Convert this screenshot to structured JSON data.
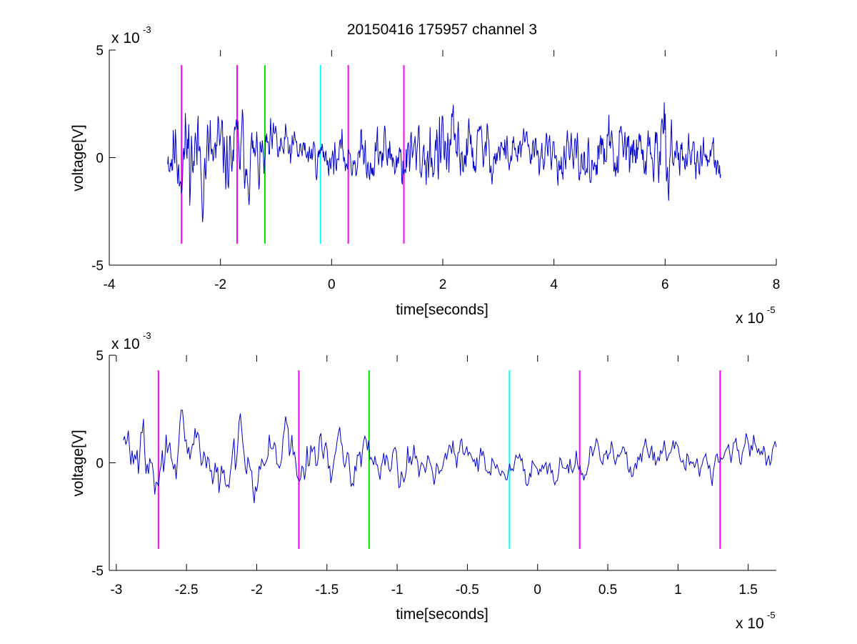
{
  "title": "20150416 175957 channel 3",
  "colors": {
    "signal": "#0000cc",
    "marker_magenta": "#ff00ff",
    "marker_green": "#00e000",
    "marker_cyan": "#00ffff",
    "axes": "#000000",
    "background": "#ffffff"
  },
  "chart_data": [
    {
      "type": "line",
      "id": "top",
      "xlabel": "time[seconds]",
      "ylabel": "voltage[V]",
      "x_multiplier_label": "x 10",
      "x_multiplier_exp": "-5",
      "y_multiplier_label": "x 10",
      "y_multiplier_exp": "-3",
      "xlim": [
        -4,
        8
      ],
      "ylim": [
        -5,
        5
      ],
      "xticks": [
        -4,
        -2,
        0,
        2,
        4,
        6,
        8
      ],
      "xtick_labels": [
        "-4",
        "-2",
        "0",
        "2",
        "4",
        "6",
        "8"
      ],
      "yticks": [
        -5,
        0,
        5
      ],
      "ytick_labels": [
        "-5",
        "0",
        "5"
      ],
      "grid": false,
      "legend": "none",
      "series": [
        {
          "color": "#0000cc",
          "x_range": [
            -2.95,
            7.0
          ],
          "samples": 1000,
          "trend": {
            "x": [
              -2.95,
              -2.7,
              -2.5,
              -2.2,
              -1.9,
              -1.6,
              -1.3,
              -1.0,
              -0.6,
              -0.2,
              0.2,
              0.6,
              1.0,
              1.3,
              1.6,
              1.8,
              2.1,
              2.4,
              2.8,
              3.2,
              3.6,
              4.0,
              4.4,
              4.8,
              5.0,
              5.4,
              5.8,
              6.0,
              6.4,
              6.8,
              7.0
            ],
            "y": [
              0.6,
              0.2,
              0.3,
              -0.2,
              0.0,
              0.3,
              -0.3,
              0.4,
              0.3,
              0.1,
              0.0,
              0.1,
              0.2,
              -0.1,
              0.1,
              0.3,
              0.2,
              0.4,
              0.3,
              0.2,
              0.3,
              0.0,
              -0.3,
              0.0,
              0.2,
              0.1,
              0.2,
              0.3,
              0.1,
              -0.1,
              -0.7
            ]
          },
          "amplitude": {
            "x": [
              -2.95,
              -2.5,
              -2.0,
              -1.5,
              -1.0,
              -0.5,
              0.0,
              0.5,
              1.0,
              1.5,
              2.0,
              2.5,
              3.0,
              3.5,
              4.0,
              4.5,
              5.0,
              5.5,
              6.0,
              6.5,
              7.0
            ],
            "y": [
              1.6,
              2.0,
              1.6,
              1.3,
              1.0,
              0.7,
              0.7,
              0.9,
              1.1,
              1.3,
              1.6,
              1.2,
              0.9,
              0.8,
              0.8,
              0.9,
              1.2,
              1.2,
              1.3,
              0.9,
              0.7
            ]
          }
        }
      ],
      "markers": [
        {
          "x": -2.7,
          "color": "#ff00ff",
          "y_range": [
            -4,
            4.3
          ]
        },
        {
          "x": -1.7,
          "color": "#ff00ff",
          "y_range": [
            -4,
            4.3
          ]
        },
        {
          "x": -1.2,
          "color": "#00e000",
          "y_range": [
            -4,
            4.3
          ]
        },
        {
          "x": -0.2,
          "color": "#00ffff",
          "y_range": [
            -4,
            4.3
          ]
        },
        {
          "x": 0.3,
          "color": "#ff00ff",
          "y_range": [
            -4,
            4.3
          ]
        },
        {
          "x": 1.3,
          "color": "#ff00ff",
          "y_range": [
            -4,
            4.3
          ]
        }
      ]
    },
    {
      "type": "line",
      "id": "bottom",
      "xlabel": "time[seconds]",
      "ylabel": "voltage[V]",
      "x_multiplier_label": "x 10",
      "x_multiplier_exp": "-5",
      "y_multiplier_label": "x 10",
      "y_multiplier_exp": "-3",
      "xlim": [
        -3.05,
        1.7
      ],
      "ylim": [
        -5,
        5
      ],
      "xticks": [
        -3,
        -2.5,
        -2,
        -1.5,
        -1,
        -0.5,
        0,
        0.5,
        1,
        1.5
      ],
      "xtick_labels": [
        "-3",
        "-2.5",
        "-2",
        "-1.5",
        "-1",
        "-0.5",
        "0",
        "0.5",
        "1",
        "1.5"
      ],
      "yticks": [
        -5,
        0,
        5
      ],
      "ytick_labels": [
        "-5",
        "0",
        "5"
      ],
      "grid": false,
      "legend": "none",
      "series": [
        {
          "color": "#0000cc",
          "x_range": [
            -2.95,
            1.7
          ],
          "samples": 520,
          "trend": {
            "x": [
              -2.95,
              -2.8,
              -2.7,
              -2.6,
              -2.5,
              -2.4,
              -2.3,
              -2.2,
              -2.1,
              -2.0,
              -1.9,
              -1.8,
              -1.7,
              -1.6,
              -1.5,
              -1.4,
              -1.3,
              -1.2,
              -1.1,
              -1.0,
              -0.8,
              -0.6,
              -0.4,
              -0.2,
              0.0,
              0.2,
              0.4,
              0.6,
              0.8,
              1.0,
              1.2,
              1.4,
              1.6,
              1.7
            ],
            "y": [
              0.7,
              0.3,
              -1.2,
              1.5,
              -0.5,
              1.2,
              -0.8,
              -1.3,
              1.5,
              -0.2,
              0.4,
              1.2,
              -0.6,
              0.3,
              0.6,
              -0.2,
              0.2,
              0.4,
              0.6,
              0.2,
              0.0,
              0.2,
              0.3,
              -0.5,
              0.1,
              -0.1,
              0.2,
              0.3,
              0.0,
              0.2,
              0.1,
              0.3,
              0.7,
              0.4
            ]
          },
          "amplitude": {
            "x": [
              -2.95,
              -2.5,
              -2.0,
              -1.5,
              -1.0,
              -0.5,
              0.0,
              0.5,
              1.0,
              1.5,
              1.7
            ],
            "y": [
              1.3,
              1.4,
              1.1,
              1.0,
              0.9,
              0.8,
              0.7,
              0.7,
              0.9,
              0.8,
              0.6
            ]
          }
        }
      ],
      "markers": [
        {
          "x": -2.7,
          "color": "#ff00ff",
          "y_range": [
            -4,
            4.3
          ]
        },
        {
          "x": -1.7,
          "color": "#ff00ff",
          "y_range": [
            -4,
            4.3
          ]
        },
        {
          "x": -1.2,
          "color": "#00e000",
          "y_range": [
            -4,
            4.3
          ]
        },
        {
          "x": -0.2,
          "color": "#00ffff",
          "y_range": [
            -4,
            4.3
          ]
        },
        {
          "x": 0.3,
          "color": "#ff00ff",
          "y_range": [
            -4,
            4.3
          ]
        },
        {
          "x": 1.3,
          "color": "#ff00ff",
          "y_range": [
            -4,
            4.3
          ]
        }
      ]
    }
  ]
}
